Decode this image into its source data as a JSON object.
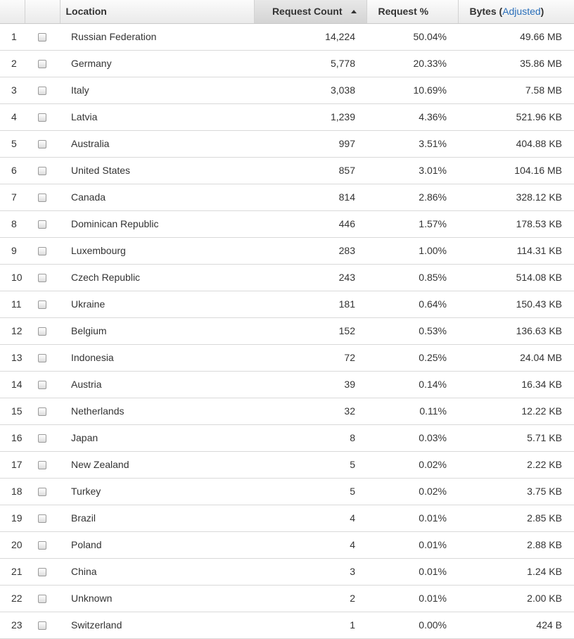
{
  "table": {
    "columns": {
      "location": "Location",
      "request_count": "Request Count",
      "request_pct": "Request %",
      "bytes_prefix": "Bytes (",
      "bytes_link": "Adjusted",
      "bytes_suffix": ")"
    },
    "sort": {
      "column": "request_count",
      "direction": "descending"
    },
    "rows": [
      {
        "rank": "1",
        "location": "Russian Federation",
        "count": "14,224",
        "pct": "50.04%",
        "bytes": "49.66 MB"
      },
      {
        "rank": "2",
        "location": "Germany",
        "count": "5,778",
        "pct": "20.33%",
        "bytes": "35.86 MB"
      },
      {
        "rank": "3",
        "location": "Italy",
        "count": "3,038",
        "pct": "10.69%",
        "bytes": "7.58 MB"
      },
      {
        "rank": "4",
        "location": "Latvia",
        "count": "1,239",
        "pct": "4.36%",
        "bytes": "521.96 KB"
      },
      {
        "rank": "5",
        "location": "Australia",
        "count": "997",
        "pct": "3.51%",
        "bytes": "404.88 KB"
      },
      {
        "rank": "6",
        "location": "United States",
        "count": "857",
        "pct": "3.01%",
        "bytes": "104.16 MB"
      },
      {
        "rank": "7",
        "location": "Canada",
        "count": "814",
        "pct": "2.86%",
        "bytes": "328.12 KB"
      },
      {
        "rank": "8",
        "location": "Dominican Republic",
        "count": "446",
        "pct": "1.57%",
        "bytes": "178.53 KB"
      },
      {
        "rank": "9",
        "location": "Luxembourg",
        "count": "283",
        "pct": "1.00%",
        "bytes": "114.31 KB"
      },
      {
        "rank": "10",
        "location": "Czech Republic",
        "count": "243",
        "pct": "0.85%",
        "bytes": "514.08 KB"
      },
      {
        "rank": "11",
        "location": "Ukraine",
        "count": "181",
        "pct": "0.64%",
        "bytes": "150.43 KB"
      },
      {
        "rank": "12",
        "location": "Belgium",
        "count": "152",
        "pct": "0.53%",
        "bytes": "136.63 KB"
      },
      {
        "rank": "13",
        "location": "Indonesia",
        "count": "72",
        "pct": "0.25%",
        "bytes": "24.04 MB"
      },
      {
        "rank": "14",
        "location": "Austria",
        "count": "39",
        "pct": "0.14%",
        "bytes": "16.34 KB"
      },
      {
        "rank": "15",
        "location": "Netherlands",
        "count": "32",
        "pct": "0.11%",
        "bytes": "12.22 KB"
      },
      {
        "rank": "16",
        "location": "Japan",
        "count": "8",
        "pct": "0.03%",
        "bytes": "5.71 KB"
      },
      {
        "rank": "17",
        "location": "New Zealand",
        "count": "5",
        "pct": "0.02%",
        "bytes": "2.22 KB"
      },
      {
        "rank": "18",
        "location": "Turkey",
        "count": "5",
        "pct": "0.02%",
        "bytes": "3.75 KB"
      },
      {
        "rank": "19",
        "location": "Brazil",
        "count": "4",
        "pct": "0.01%",
        "bytes": "2.85 KB"
      },
      {
        "rank": "20",
        "location": "Poland",
        "count": "4",
        "pct": "0.01%",
        "bytes": "2.88 KB"
      },
      {
        "rank": "21",
        "location": "China",
        "count": "3",
        "pct": "0.01%",
        "bytes": "1.24 KB"
      },
      {
        "rank": "22",
        "location": "Unknown",
        "count": "2",
        "pct": "0.01%",
        "bytes": "2.00 KB"
      },
      {
        "rank": "23",
        "location": "Switzerland",
        "count": "1",
        "pct": "0.00%",
        "bytes": "424 B"
      }
    ]
  },
  "colors": {
    "link": "#2a6fba",
    "header_bg": "#eaeaea",
    "sorted_header_bg": "#d4d4d4",
    "row_divider": "#d9d9d9",
    "text": "#333333"
  },
  "icons": {
    "sort": "sort-ascending-arrow-icon",
    "row_select": "checkbox"
  }
}
